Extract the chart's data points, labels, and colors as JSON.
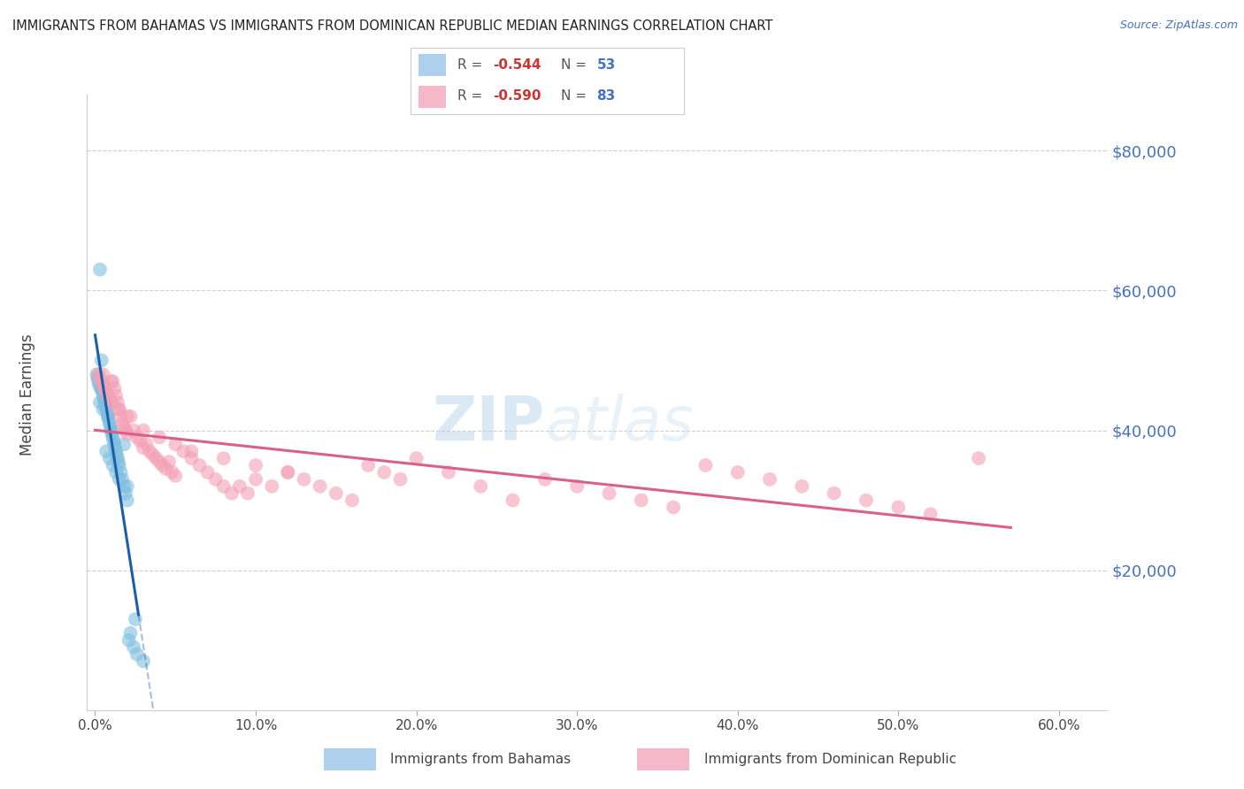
{
  "title": "IMMIGRANTS FROM BAHAMAS VS IMMIGRANTS FROM DOMINICAN REPUBLIC MEDIAN EARNINGS CORRELATION CHART",
  "source": "Source: ZipAtlas.com",
  "ylabel": "Median Earnings",
  "ylim": [
    0,
    88000
  ],
  "xlim": [
    -0.5,
    63
  ],
  "bahamas_color": "#7fbfdf",
  "dr_color": "#f4a0b5",
  "bahamas_line_color": "#1a5fa8",
  "dr_line_color": "#d9608a",
  "watermark": "ZIPatlas",
  "watermark_color": "#c8dff0",
  "bahamas_x": [
    0.1,
    0.15,
    0.2,
    0.25,
    0.3,
    0.35,
    0.4,
    0.45,
    0.5,
    0.55,
    0.6,
    0.65,
    0.7,
    0.75,
    0.8,
    0.85,
    0.9,
    0.95,
    1.0,
    1.05,
    1.1,
    1.15,
    1.2,
    1.25,
    1.3,
    1.35,
    1.4,
    1.45,
    1.5,
    1.6,
    1.7,
    1.8,
    1.9,
    2.0,
    2.1,
    2.2,
    2.4,
    2.6,
    0.3,
    0.5,
    0.7,
    0.9,
    1.1,
    1.3,
    1.5,
    2.0,
    0.4,
    0.6,
    0.8,
    1.0,
    1.8,
    2.5,
    3.0
  ],
  "bahamas_y": [
    48000,
    47500,
    47000,
    46500,
    63000,
    46000,
    50000,
    45500,
    45000,
    44500,
    44000,
    43500,
    43000,
    42500,
    42000,
    41500,
    41000,
    40500,
    40000,
    39500,
    39000,
    38500,
    38000,
    37500,
    37000,
    36500,
    36000,
    35500,
    35000,
    34000,
    33000,
    32000,
    31000,
    30000,
    10000,
    11000,
    9000,
    8000,
    44000,
    43000,
    37000,
    36000,
    35000,
    34000,
    33000,
    32000,
    46000,
    44000,
    42000,
    40000,
    38000,
    13000,
    7000
  ],
  "dr_x": [
    0.2,
    0.3,
    0.4,
    0.5,
    0.6,
    0.7,
    0.8,
    0.9,
    1.0,
    1.1,
    1.2,
    1.3,
    1.4,
    1.5,
    1.6,
    1.7,
    1.8,
    1.9,
    2.0,
    2.2,
    2.4,
    2.6,
    2.8,
    3.0,
    3.2,
    3.4,
    3.6,
    3.8,
    4.0,
    4.2,
    4.4,
    4.6,
    4.8,
    5.0,
    5.5,
    6.0,
    6.5,
    7.0,
    7.5,
    8.0,
    8.5,
    9.0,
    9.5,
    10.0,
    11.0,
    12.0,
    13.0,
    14.0,
    15.0,
    16.0,
    17.0,
    18.0,
    19.0,
    20.0,
    22.0,
    24.0,
    26.0,
    28.0,
    30.0,
    32.0,
    34.0,
    36.0,
    38.0,
    40.0,
    42.0,
    44.0,
    46.0,
    48.0,
    50.0,
    52.0,
    0.5,
    1.0,
    1.5,
    2.0,
    3.0,
    4.0,
    5.0,
    6.0,
    8.0,
    10.0,
    12.0,
    55.0
  ],
  "dr_y": [
    48000,
    47500,
    47000,
    46500,
    46000,
    45500,
    45000,
    44500,
    44000,
    47000,
    46000,
    45000,
    44000,
    43000,
    42000,
    41000,
    40500,
    40000,
    39500,
    42000,
    40000,
    39000,
    38500,
    37500,
    38000,
    37000,
    36500,
    36000,
    35500,
    35000,
    34500,
    35500,
    34000,
    33500,
    37000,
    36000,
    35000,
    34000,
    33000,
    32000,
    31000,
    32000,
    31000,
    33000,
    32000,
    34000,
    33000,
    32000,
    31000,
    30000,
    35000,
    34000,
    33000,
    36000,
    34000,
    32000,
    30000,
    33000,
    32000,
    31000,
    30000,
    29000,
    35000,
    34000,
    33000,
    32000,
    31000,
    30000,
    29000,
    28000,
    48000,
    47000,
    43000,
    42000,
    40000,
    39000,
    38000,
    37000,
    36000,
    35000,
    34000,
    36000
  ]
}
